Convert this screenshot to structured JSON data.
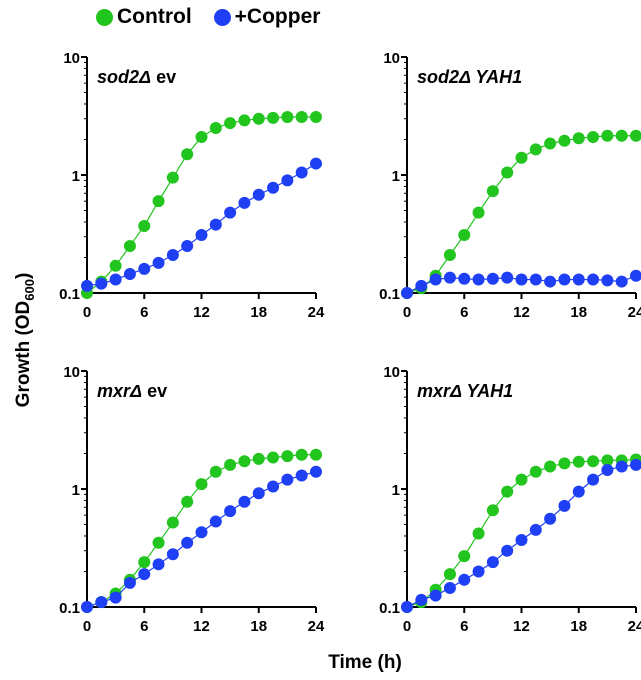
{
  "legend": {
    "control_label": "Control",
    "copper_label": "+Copper",
    "control_color": "#22c41e",
    "copper_color": "#1f3ff5"
  },
  "axes": {
    "ylabel": "Growth (OD",
    "ylabel_sub": "600",
    "ylabel_close": ")",
    "xlabel": "Time (h)"
  },
  "chart_data": [
    {
      "type": "scatter",
      "panel_title_italic": "sod2Δ",
      "panel_title_rest": " ev",
      "xlim": [
        0,
        24
      ],
      "ylim": [
        0.1,
        10
      ],
      "yscale": "log",
      "xticks": [
        "0",
        "6",
        "12",
        "18",
        "24"
      ],
      "yticks": [
        "0.1",
        "1",
        "10"
      ],
      "x": [
        0,
        1.5,
        3,
        4.5,
        6,
        7.5,
        9,
        10.5,
        12,
        13.5,
        15,
        16.5,
        18,
        19.5,
        21,
        22.5,
        24
      ],
      "series": [
        {
          "name": "Control",
          "color": "#22c41e",
          "values": [
            0.1,
            0.125,
            0.17,
            0.25,
            0.37,
            0.6,
            0.95,
            1.5,
            2.1,
            2.5,
            2.75,
            2.9,
            3.0,
            3.05,
            3.1,
            3.1,
            3.1
          ]
        },
        {
          "name": "+Copper",
          "color": "#1f3ff5",
          "values": [
            0.115,
            0.12,
            0.13,
            0.145,
            0.16,
            0.18,
            0.21,
            0.25,
            0.31,
            0.38,
            0.48,
            0.58,
            0.68,
            0.78,
            0.9,
            1.05,
            1.25
          ]
        }
      ]
    },
    {
      "type": "scatter",
      "panel_title_italic": "sod2Δ YAH1",
      "panel_title_rest": "",
      "xlim": [
        0,
        24
      ],
      "ylim": [
        0.1,
        10
      ],
      "yscale": "log",
      "xticks": [
        "0",
        "6",
        "12",
        "18",
        "24"
      ],
      "yticks": [
        "0.1",
        "1",
        "10"
      ],
      "x": [
        0,
        1.5,
        3,
        4.5,
        6,
        7.5,
        9,
        10.5,
        12,
        13.5,
        15,
        16.5,
        18,
        19.5,
        21,
        22.5,
        24
      ],
      "series": [
        {
          "name": "Control",
          "color": "#22c41e",
          "values": [
            0.1,
            0.11,
            0.14,
            0.21,
            0.31,
            0.48,
            0.73,
            1.05,
            1.4,
            1.65,
            1.85,
            1.95,
            2.05,
            2.1,
            2.15,
            2.15,
            2.15
          ]
        },
        {
          "name": "+Copper",
          "color": "#1f3ff5",
          "values": [
            0.1,
            0.115,
            0.13,
            0.135,
            0.132,
            0.13,
            0.132,
            0.135,
            0.13,
            0.13,
            0.125,
            0.13,
            0.13,
            0.13,
            0.128,
            0.125,
            0.14
          ]
        }
      ]
    },
    {
      "type": "scatter",
      "panel_title_italic": "mxrΔ",
      "panel_title_rest": " ev",
      "xlim": [
        0,
        24
      ],
      "ylim": [
        0.1,
        10
      ],
      "yscale": "log",
      "xticks": [
        "0",
        "6",
        "12",
        "18",
        "24"
      ],
      "yticks": [
        "0.1",
        "1",
        "10"
      ],
      "x": [
        0,
        1.5,
        3,
        4.5,
        6,
        7.5,
        9,
        10.5,
        12,
        13.5,
        15,
        16.5,
        18,
        19.5,
        21,
        22.5,
        24
      ],
      "series": [
        {
          "name": "Control",
          "color": "#22c41e",
          "values": [
            0.1,
            0.11,
            0.13,
            0.17,
            0.24,
            0.35,
            0.52,
            0.78,
            1.1,
            1.4,
            1.6,
            1.72,
            1.8,
            1.85,
            1.9,
            1.95,
            1.95
          ]
        },
        {
          "name": "+Copper",
          "color": "#1f3ff5",
          "values": [
            0.1,
            0.11,
            0.12,
            0.16,
            0.19,
            0.23,
            0.28,
            0.35,
            0.43,
            0.53,
            0.65,
            0.78,
            0.92,
            1.05,
            1.2,
            1.3,
            1.4
          ]
        }
      ]
    },
    {
      "type": "scatter",
      "panel_title_italic": "mxrΔ YAH1",
      "panel_title_rest": "",
      "xlim": [
        0,
        24
      ],
      "ylim": [
        0.1,
        10
      ],
      "yscale": "log",
      "xticks": [
        "0",
        "6",
        "12",
        "18",
        "24"
      ],
      "yticks": [
        "0.1",
        "1",
        "10"
      ],
      "x": [
        0,
        1.5,
        3,
        4.5,
        6,
        7.5,
        9,
        10.5,
        12,
        13.5,
        15,
        16.5,
        18,
        19.5,
        21,
        22.5,
        24
      ],
      "series": [
        {
          "name": "Control",
          "color": "#22c41e",
          "values": [
            0.1,
            0.11,
            0.14,
            0.19,
            0.27,
            0.42,
            0.66,
            0.95,
            1.2,
            1.4,
            1.55,
            1.65,
            1.7,
            1.72,
            1.75,
            1.75,
            1.78
          ]
        },
        {
          "name": "+Copper",
          "color": "#1f3ff5",
          "values": [
            0.1,
            0.115,
            0.125,
            0.145,
            0.17,
            0.2,
            0.24,
            0.3,
            0.37,
            0.45,
            0.56,
            0.72,
            0.95,
            1.2,
            1.45,
            1.55,
            1.6
          ]
        }
      ]
    }
  ]
}
